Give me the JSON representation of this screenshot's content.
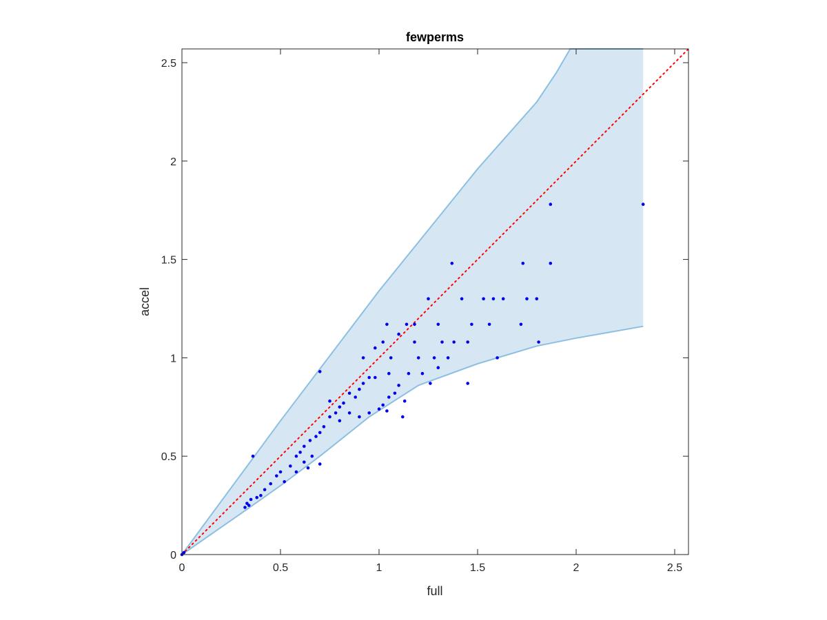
{
  "chart_data": {
    "type": "scatter",
    "title": "fewperms",
    "xlabel": "full",
    "ylabel": "accel",
    "xlim": [
      0,
      2.57
    ],
    "ylim": [
      0,
      2.57
    ],
    "x_ticks": [
      0,
      0.5,
      1,
      1.5,
      2,
      2.5
    ],
    "x_tick_labels": [
      "0",
      "0.5",
      "1",
      "1.5",
      "2",
      "2.5"
    ],
    "y_ticks": [
      0,
      0.5,
      1,
      1.5,
      2,
      2.5
    ],
    "y_tick_labels": [
      "0",
      "0.5",
      "1",
      "1.5",
      "2",
      "2.5"
    ],
    "grid": false,
    "box": true,
    "colors": {
      "points": "#0000ee",
      "band_fill": "#d6e7f3",
      "band_edge": "#8cbfe0",
      "reference_line": "#ff0000",
      "axes": "#262626"
    },
    "band": {
      "upper": [
        [
          0,
          0
        ],
        [
          0.5,
          0.68
        ],
        [
          1,
          1.34
        ],
        [
          1.5,
          1.96
        ],
        [
          1.8,
          2.3
        ],
        [
          1.9,
          2.45
        ],
        [
          1.97,
          2.57
        ],
        [
          2.34,
          2.57
        ]
      ],
      "lower": [
        [
          0,
          0
        ],
        [
          0.33,
          0.23
        ],
        [
          0.5,
          0.35
        ],
        [
          0.7,
          0.5
        ],
        [
          0.95,
          0.7
        ],
        [
          1.2,
          0.86
        ],
        [
          1.5,
          0.97
        ],
        [
          1.8,
          1.06
        ],
        [
          2.0,
          1.1
        ],
        [
          2.34,
          1.16
        ]
      ]
    },
    "reference_line": {
      "style": "dotted",
      "from": [
        0,
        0
      ],
      "to": [
        2.57,
        2.57
      ]
    },
    "series": [
      {
        "points": [
          [
            0,
            0
          ],
          [
            0.01,
            0.01
          ],
          [
            0.32,
            0.24
          ],
          [
            0.33,
            0.26
          ],
          [
            0.34,
            0.25
          ],
          [
            0.35,
            0.28
          ],
          [
            0.36,
            0.5
          ],
          [
            0.38,
            0.29
          ],
          [
            0.4,
            0.3
          ],
          [
            0.42,
            0.33
          ],
          [
            0.45,
            0.36
          ],
          [
            0.48,
            0.4
          ],
          [
            0.5,
            0.42
          ],
          [
            0.52,
            0.37
          ],
          [
            0.55,
            0.45
          ],
          [
            0.58,
            0.5
          ],
          [
            0.6,
            0.52
          ],
          [
            0.62,
            0.55
          ],
          [
            0.65,
            0.58
          ],
          [
            0.68,
            0.6
          ],
          [
            0.7,
            0.62
          ],
          [
            0.7,
            0.46
          ],
          [
            0.62,
            0.47
          ],
          [
            0.64,
            0.44
          ],
          [
            0.66,
            0.5
          ],
          [
            0.58,
            0.42
          ],
          [
            0.72,
            0.65
          ],
          [
            0.75,
            0.7
          ],
          [
            0.78,
            0.72
          ],
          [
            0.8,
            0.75
          ],
          [
            0.82,
            0.77
          ],
          [
            0.85,
            0.82
          ],
          [
            0.88,
            0.8
          ],
          [
            0.9,
            0.84
          ],
          [
            0.92,
            0.87
          ],
          [
            0.95,
            0.9
          ],
          [
            0.7,
            0.93
          ],
          [
            0.75,
            0.78
          ],
          [
            0.8,
            0.68
          ],
          [
            0.85,
            0.72
          ],
          [
            0.9,
            0.7
          ],
          [
            0.95,
            0.72
          ],
          [
            1.0,
            0.74
          ],
          [
            1.02,
            0.76
          ],
          [
            1.05,
            0.8
          ],
          [
            1.08,
            0.82
          ],
          [
            1.1,
            0.86
          ],
          [
            1.13,
            0.78
          ],
          [
            1.12,
            0.7
          ],
          [
            1.04,
            0.73
          ],
          [
            0.92,
            1.0
          ],
          [
            0.98,
            1.05
          ],
          [
            1.02,
            1.08
          ],
          [
            1.04,
            1.17
          ],
          [
            1.06,
            1.0
          ],
          [
            1.1,
            1.12
          ],
          [
            1.14,
            1.17
          ],
          [
            1.18,
            1.08
          ],
          [
            1.2,
            1.0
          ],
          [
            1.25,
            1.3
          ],
          [
            1.28,
            1.0
          ],
          [
            1.3,
            0.95
          ],
          [
            1.32,
            1.08
          ],
          [
            1.35,
            1.0
          ],
          [
            1.37,
            1.48
          ],
          [
            1.38,
            1.08
          ],
          [
            1.42,
            1.3
          ],
          [
            1.45,
            1.08
          ],
          [
            1.45,
            0.87
          ],
          [
            1.47,
            1.17
          ],
          [
            1.53,
            1.3
          ],
          [
            1.56,
            1.17
          ],
          [
            1.58,
            1.3
          ],
          [
            1.6,
            1.0
          ],
          [
            1.63,
            1.3
          ],
          [
            1.72,
            1.17
          ],
          [
            1.73,
            1.48
          ],
          [
            1.75,
            1.3
          ],
          [
            1.8,
            1.3
          ],
          [
            1.81,
            1.08
          ],
          [
            1.87,
            1.78
          ],
          [
            1.87,
            1.48
          ],
          [
            2.34,
            1.78
          ],
          [
            1.05,
            0.92
          ],
          [
            1.15,
            0.92
          ],
          [
            1.22,
            0.92
          ],
          [
            1.26,
            0.87
          ],
          [
            1.3,
            1.17
          ],
          [
            1.18,
            1.17
          ],
          [
            0.98,
            0.9
          ]
        ]
      }
    ]
  }
}
